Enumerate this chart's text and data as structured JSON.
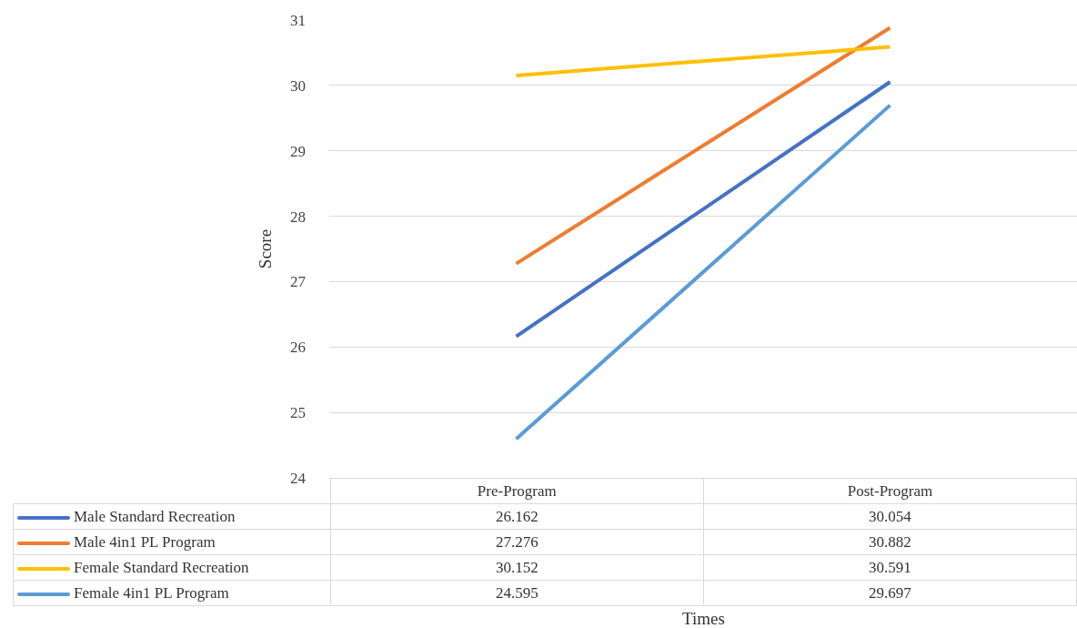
{
  "chart_data": {
    "type": "line",
    "annotations": [
      "Times"
    ],
    "ylabel": "Score",
    "categories": [
      "Pre-Program",
      "Post-Program"
    ],
    "series": [
      {
        "name": "Male Standard Recreation",
        "color": "#4472c4",
        "values": [
          26.162,
          30.054
        ]
      },
      {
        "name": "Male 4in1 PL Program",
        "color": "#ed7d31",
        "values": [
          27.276,
          30.882
        ]
      },
      {
        "name": "Female Standard Recreation",
        "color": "#ffc000",
        "values": [
          30.152,
          30.591
        ]
      },
      {
        "name": "Female 4in1 PL Program",
        "color": "#5b9bd5",
        "values": [
          24.595,
          29.697
        ]
      }
    ],
    "ylim": [
      24,
      31
    ],
    "yticks": [
      24,
      25,
      26,
      27,
      28,
      29,
      30,
      31
    ],
    "grid": "y",
    "legend": "bottom",
    "data_labels": true,
    "marker": "none",
    "line_style": "solid"
  }
}
